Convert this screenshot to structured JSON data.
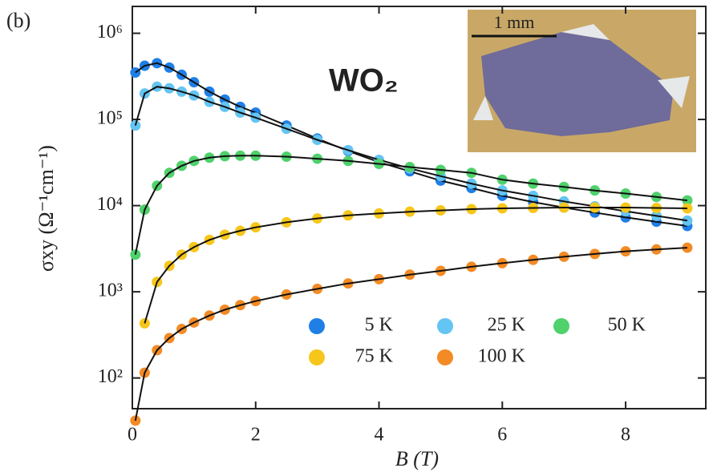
{
  "chart_data": {
    "type": "scatter",
    "panel_label": "(b)",
    "annotation": "WO₂",
    "inset_label": "1 mm",
    "xlabel": "B (T)",
    "ylabel": "σxy (Ω⁻¹cm⁻¹)",
    "yscale": "log",
    "xlim": [
      0,
      9.3
    ],
    "ylim": [
      44,
      2050000
    ],
    "xticks": [
      0,
      2,
      4,
      6,
      8
    ],
    "yticks": [
      {
        "value": 100,
        "label": "10²"
      },
      {
        "value": 1000,
        "label": "10³"
      },
      {
        "value": 10000,
        "label": "10⁴"
      },
      {
        "value": 100000,
        "label": "10⁵"
      },
      {
        "value": 1000000,
        "label": "10⁶"
      }
    ],
    "x": [
      0.05,
      0.2,
      0.4,
      0.6,
      0.8,
      1.0,
      1.25,
      1.5,
      1.75,
      2,
      2.5,
      3,
      3.5,
      4,
      4.5,
      5,
      5.5,
      6,
      6.5,
      7,
      7.5,
      8,
      8.5,
      9
    ],
    "series": [
      {
        "name": "5 K",
        "color": "#1f7fe6",
        "values": [
          350000,
          420000,
          450000,
          400000,
          330000,
          270000,
          210000,
          170000,
          140000,
          120000,
          85000,
          60000,
          43000,
          32000,
          25000,
          19500,
          16000,
          13000,
          11000,
          9500,
          8300,
          7300,
          6500,
          5800
        ]
      },
      {
        "name": "25 K",
        "color": "#64c4f2",
        "values": [
          85000,
          200000,
          240000,
          230000,
          210000,
          190000,
          160000,
          140000,
          120000,
          105000,
          78000,
          58000,
          44000,
          34000,
          27000,
          22000,
          18000,
          15000,
          13000,
          11200,
          9800,
          8600,
          7600,
          6700
        ]
      },
      {
        "name": "50 K",
        "color": "#4fd16c",
        "values": [
          2700,
          9000,
          17000,
          24000,
          29000,
          33000,
          36000,
          37500,
          38000,
          38000,
          37000,
          35000,
          33000,
          30500,
          28000,
          26000,
          24000,
          20000,
          18000,
          16500,
          15000,
          13800,
          12600,
          11500
        ]
      },
      {
        "name": "75 K",
        "color": "#f6c61a",
        "values": [
          null,
          430,
          1300,
          2000,
          2700,
          3300,
          4000,
          4600,
          5100,
          5600,
          6400,
          7100,
          7700,
          8100,
          8500,
          8800,
          9100,
          9300,
          9400,
          9500,
          9500,
          9500,
          9400,
          9300
        ]
      },
      {
        "name": "100 K",
        "color": "#f38b25",
        "values": [
          32,
          115,
          210,
          290,
          370,
          440,
          530,
          620,
          700,
          780,
          930,
          1080,
          1250,
          1400,
          1580,
          1750,
          1950,
          2150,
          2350,
          2550,
          2750,
          2950,
          3100,
          3250
        ]
      }
    ]
  }
}
